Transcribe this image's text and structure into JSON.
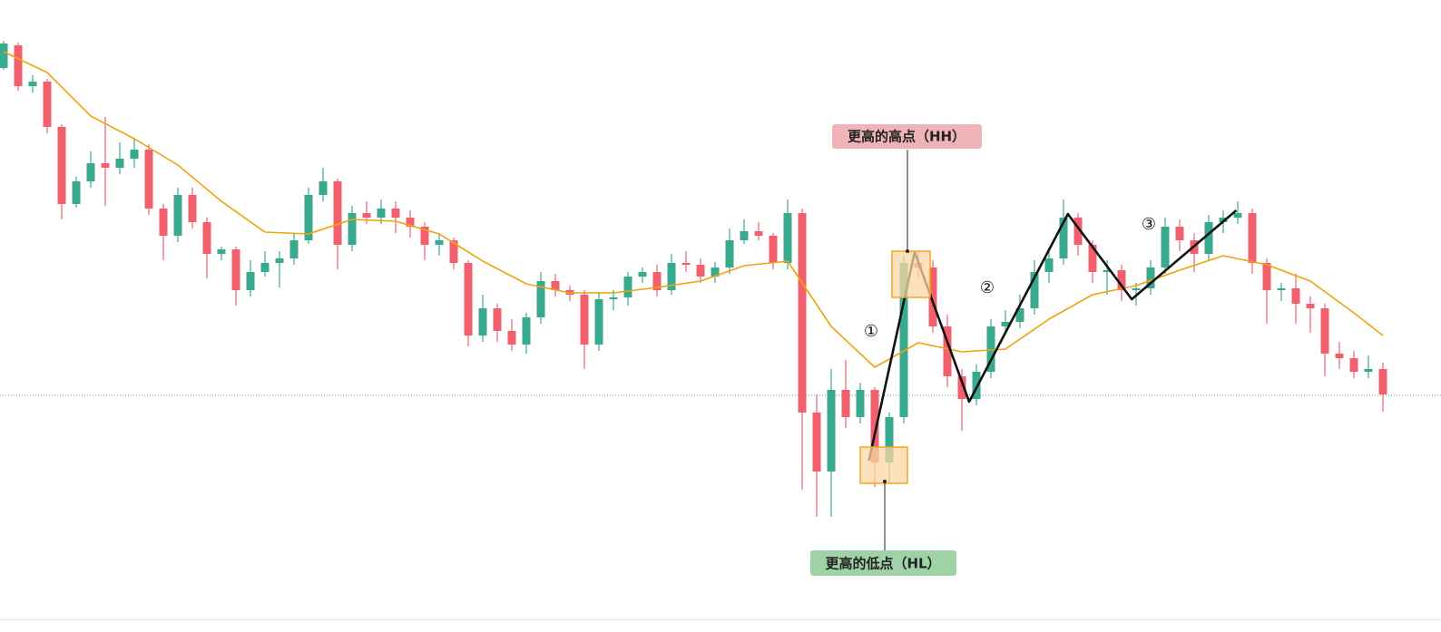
{
  "chart_data": {
    "type": "candlestick",
    "ylim": [
      0,
      697
    ],
    "up_color": "#3aaa8e",
    "down_color": "#f0616d",
    "candles": [
      [
        622,
        652,
        620,
        649
      ],
      [
        647,
        650,
        597,
        602
      ],
      [
        602,
        614,
        595,
        607
      ],
      [
        607,
        610,
        550,
        557
      ],
      [
        557,
        560,
        455,
        472
      ],
      [
        472,
        502,
        468,
        497
      ],
      [
        497,
        530,
        490,
        517
      ],
      [
        517,
        568,
        470,
        512
      ],
      [
        512,
        540,
        505,
        522
      ],
      [
        522,
        545,
        512,
        532
      ],
      [
        532,
        538,
        460,
        467
      ],
      [
        467,
        472,
        410,
        437
      ],
      [
        437,
        490,
        430,
        482
      ],
      [
        482,
        490,
        445,
        452
      ],
      [
        452,
        457,
        390,
        417
      ],
      [
        417,
        425,
        410,
        422
      ],
      [
        422,
        425,
        360,
        377
      ],
      [
        377,
        410,
        370,
        397
      ],
      [
        397,
        420,
        392,
        407
      ],
      [
        407,
        420,
        380,
        412
      ],
      [
        412,
        440,
        405,
        432
      ],
      [
        432,
        490,
        428,
        482
      ],
      [
        482,
        512,
        475,
        497
      ],
      [
        497,
        500,
        400,
        427
      ],
      [
        427,
        470,
        420,
        462
      ],
      [
        462,
        475,
        450,
        457
      ],
      [
        457,
        477,
        450,
        467
      ],
      [
        467,
        475,
        440,
        457
      ],
      [
        457,
        465,
        435,
        447
      ],
      [
        447,
        452,
        410,
        427
      ],
      [
        427,
        440,
        415,
        432
      ],
      [
        432,
        435,
        400,
        407
      ],
      [
        407,
        410,
        315,
        327
      ],
      [
        327,
        372,
        320,
        357
      ],
      [
        357,
        362,
        320,
        332
      ],
      [
        332,
        345,
        310,
        317
      ],
      [
        317,
        352,
        307,
        347
      ],
      [
        347,
        397,
        340,
        387
      ],
      [
        387,
        395,
        370,
        377
      ],
      [
        377,
        382,
        365,
        372
      ],
      [
        372,
        377,
        290,
        317
      ],
      [
        317,
        375,
        310,
        367
      ],
      [
        367,
        377,
        355,
        369
      ],
      [
        369,
        397,
        360,
        392
      ],
      [
        392,
        402,
        385,
        397
      ],
      [
        397,
        405,
        370,
        377
      ],
      [
        377,
        417,
        372,
        407
      ],
      [
        407,
        420,
        397,
        405
      ],
      [
        405,
        412,
        385,
        392
      ],
      [
        392,
        408,
        385,
        402
      ],
      [
        402,
        445,
        395,
        432
      ],
      [
        432,
        455,
        428,
        442
      ],
      [
        442,
        452,
        432,
        437
      ],
      [
        437,
        440,
        400,
        407
      ],
      [
        407,
        477,
        400,
        462
      ],
      [
        462,
        467,
        157,
        242
      ],
      [
        242,
        262,
        127,
        177
      ],
      [
        177,
        290,
        127,
        267
      ],
      [
        267,
        300,
        225,
        237
      ],
      [
        237,
        275,
        230,
        267
      ],
      [
        267,
        270,
        160,
        187
      ],
      [
        187,
        242,
        165,
        237
      ],
      [
        237,
        415,
        230,
        407
      ],
      [
        407,
        420,
        390,
        402
      ],
      [
        402,
        410,
        330,
        337
      ],
      [
        337,
        350,
        270,
        282
      ],
      [
        282,
        290,
        222,
        257
      ],
      [
        257,
        295,
        250,
        287
      ],
      [
        287,
        345,
        280,
        337
      ],
      [
        337,
        355,
        330,
        342
      ],
      [
        342,
        372,
        335,
        357
      ],
      [
        357,
        410,
        350,
        397
      ],
      [
        397,
        420,
        385,
        412
      ],
      [
        412,
        477,
        405,
        457
      ],
      [
        457,
        462,
        415,
        427
      ],
      [
        427,
        432,
        385,
        397
      ],
      [
        397,
        410,
        372,
        399
      ],
      [
        399,
        405,
        365,
        377
      ],
      [
        377,
        385,
        360,
        379
      ],
      [
        379,
        410,
        372,
        402
      ],
      [
        402,
        457,
        395,
        447
      ],
      [
        447,
        455,
        420,
        432
      ],
      [
        432,
        440,
        397,
        417
      ],
      [
        417,
        460,
        410,
        452
      ],
      [
        452,
        465,
        440,
        457
      ],
      [
        457,
        475,
        450,
        462
      ],
      [
        462,
        467,
        395,
        407
      ],
      [
        407,
        412,
        340,
        377
      ],
      [
        377,
        385,
        365,
        379
      ],
      [
        379,
        395,
        340,
        362
      ],
      [
        362,
        370,
        330,
        357
      ],
      [
        357,
        362,
        282,
        307
      ],
      [
        307,
        320,
        290,
        302
      ],
      [
        302,
        310,
        280,
        287
      ],
      [
        287,
        305,
        280,
        290
      ],
      [
        290,
        297,
        243,
        262
      ]
    ],
    "moving_average": {
      "color": "#f0a30a",
      "x": [
        0,
        3,
        6,
        9,
        12,
        15,
        18,
        21,
        24,
        27,
        30,
        33,
        36,
        39,
        42,
        45,
        48,
        51,
        54,
        57,
        60,
        63,
        66,
        69,
        72,
        75,
        78,
        81,
        84,
        87,
        90,
        93,
        95
      ],
      "values": [
        640,
        617,
        569,
        544,
        515,
        475,
        441,
        439,
        455,
        453,
        439,
        409,
        384,
        374,
        374,
        380,
        387,
        404,
        409,
        337,
        292,
        319,
        309,
        312,
        345,
        372,
        382,
        399,
        415,
        405,
        387,
        352,
        327
      ]
    },
    "zigzag": {
      "color": "#111111",
      "x": [
        59.6,
        62.75,
        66.5,
        73.3,
        77.7,
        84.9
      ],
      "values": [
        189,
        419,
        254,
        461,
        367,
        465
      ]
    },
    "price_line": {
      "value": 261,
      "color": "#5aa6b0"
    },
    "annotations": {
      "higher_high": "更高的高点（HH）",
      "higher_low": "更高的低点（HL）",
      "waves": [
        "①",
        "②",
        "③"
      ]
    }
  }
}
